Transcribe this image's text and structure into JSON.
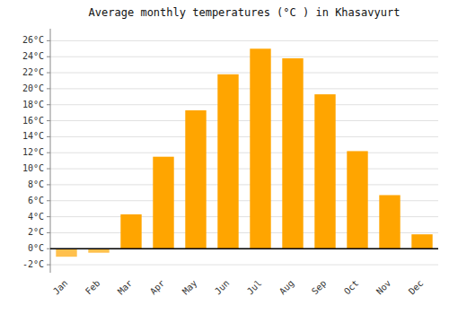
{
  "chart_data": {
    "type": "bar",
    "title": "Average monthly temperatures (°C ) in Khasavyurt",
    "categories": [
      "Jan",
      "Feb",
      "Mar",
      "Apr",
      "May",
      "Jun",
      "Jul",
      "Aug",
      "Sep",
      "Oct",
      "Nov",
      "Dec"
    ],
    "values": [
      -1.0,
      -0.5,
      4.3,
      11.5,
      17.3,
      21.8,
      25.0,
      23.8,
      19.3,
      12.2,
      6.7,
      1.8
    ],
    "colors": [
      "#FFC04D",
      "#FFC04D",
      "#FFA500",
      "#FFA500",
      "#FFA500",
      "#FFA500",
      "#FFA500",
      "#FFA500",
      "#FFA500",
      "#FFA500",
      "#FFA500",
      "#FFA500"
    ],
    "ylim": [
      -3.0,
      27.5
    ],
    "yticks": [
      {
        "value": -2,
        "label": "-2°C"
      },
      {
        "value": 0,
        "label": "0°C"
      },
      {
        "value": 2,
        "label": "2°C"
      },
      {
        "value": 4,
        "label": "4°C"
      },
      {
        "value": 6,
        "label": "6°C"
      },
      {
        "value": 8,
        "label": "8°C"
      },
      {
        "value": 10,
        "label": "10°C"
      },
      {
        "value": 12,
        "label": "12°C"
      },
      {
        "value": 14,
        "label": "14°C"
      },
      {
        "value": 16,
        "label": "16°C"
      },
      {
        "value": 18,
        "label": "18°C"
      },
      {
        "value": 20,
        "label": "20°C"
      },
      {
        "value": 22,
        "label": "22°C"
      },
      {
        "value": 24,
        "label": "24°C"
      },
      {
        "value": 26,
        "label": "26°C"
      }
    ],
    "grid": true
  }
}
